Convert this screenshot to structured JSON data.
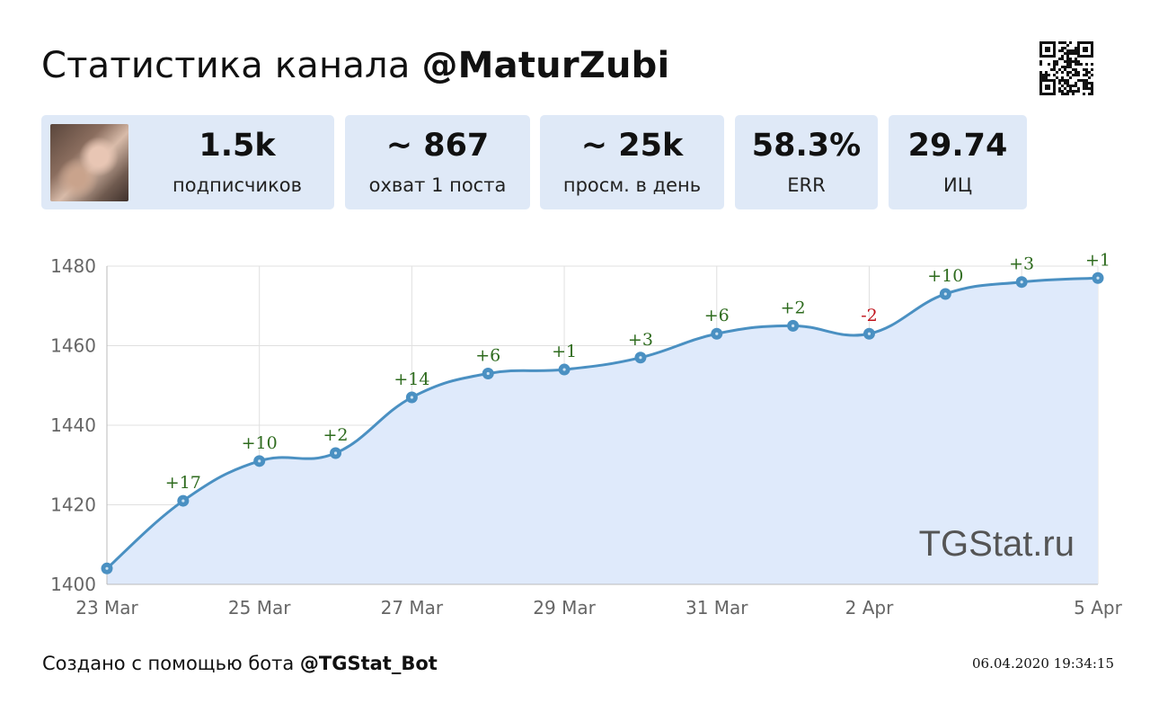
{
  "header": {
    "title_prefix": "Статистика канала",
    "channel": "@MaturZubi"
  },
  "stats": [
    {
      "value": "1.5k",
      "label": "подписчиков"
    },
    {
      "value": "~ 867",
      "label": "охват 1 поста"
    },
    {
      "value": "~ 25k",
      "label": "просм. в день"
    },
    {
      "value": "58.3%",
      "label": "ERR"
    },
    {
      "value": "29.74",
      "label": "ИЦ"
    }
  ],
  "chart_data": {
    "type": "line",
    "x": [
      "23 Mar",
      "24 Mar",
      "25 Mar",
      "26 Mar",
      "27 Mar",
      "28 Mar",
      "29 Mar",
      "30 Mar",
      "31 Mar",
      "1 Apr",
      "2 Apr",
      "3 Apr",
      "4 Apr",
      "5 Apr"
    ],
    "values": [
      1404,
      1421,
      1431,
      1433,
      1447,
      1453,
      1454,
      1457,
      1463,
      1465,
      1463,
      1473,
      1476,
      1477
    ],
    "annotations": [
      "",
      "+17",
      "+10",
      "+2",
      "+14",
      "+6",
      "+1",
      "+3",
      "+6",
      "+2",
      "-2",
      "+10",
      "+3",
      "+1"
    ],
    "x_ticks": [
      "23 Mar",
      "25 Mar",
      "27 Mar",
      "29 Mar",
      "31 Mar",
      "2 Apr",
      "5 Apr"
    ],
    "y_ticks": [
      1400,
      1420,
      1440,
      1460,
      1480
    ],
    "ylim": [
      1400,
      1480
    ],
    "grid": true,
    "watermark": "TGStat.ru",
    "colors": {
      "line": "#4a90c2",
      "fill": "#dfeafb",
      "positive": "#2e6b1e",
      "negative": "#c0141c",
      "grid": "#e0e0e0",
      "axis_text": "#666666"
    }
  },
  "footer": {
    "text": "Создано с помощью бота",
    "bot": "@TGStat_Bot",
    "timestamp": "06.04.2020 19:34:15"
  }
}
